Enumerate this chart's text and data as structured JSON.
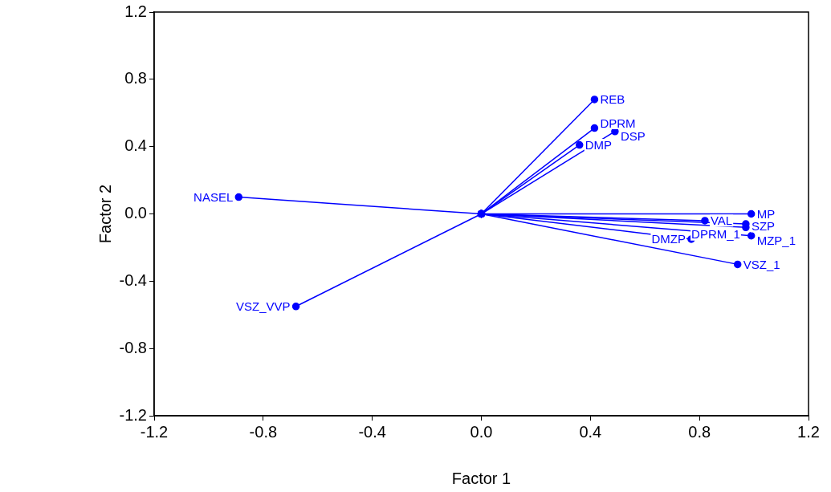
{
  "chart_data": {
    "type": "line",
    "xlabel": "Factor 1",
    "ylabel": "Factor 2",
    "xlim": [
      -1.2,
      1.2
    ],
    "ylim": [
      -1.2,
      1.2
    ],
    "xticks": [
      -1.2,
      -0.8,
      -0.4,
      {
        "value": 0,
        "label": "0.0"
      },
      0.4,
      0.8,
      1.2
    ],
    "yticks": [
      -1.2,
      -0.8,
      -0.4,
      {
        "value": 0,
        "label": "0.0"
      },
      0.4,
      0.8,
      1.2
    ],
    "grid": false,
    "legend": false,
    "marker": "circle",
    "line_style": "solid",
    "series": [
      {
        "name": "REB",
        "color": "#0000ff",
        "x": [
          0,
          0.415
        ],
        "values": [
          0,
          0.68
        ]
      },
      {
        "name": "DPRM",
        "color": "#0000ff",
        "x": [
          0,
          0.415
        ],
        "values": [
          0,
          0.51
        ]
      },
      {
        "name": "DSP",
        "color": "#0000ff",
        "x": [
          0,
          0.49
        ],
        "values": [
          0,
          0.49
        ]
      },
      {
        "name": "DMP",
        "color": "#0000ff",
        "x": [
          0,
          0.36
        ],
        "values": [
          0,
          0.41
        ]
      },
      {
        "name": "NASEL",
        "color": "#0000ff",
        "x": [
          0,
          -0.89
        ],
        "values": [
          0,
          0.1
        ]
      },
      {
        "name": "VSZ_VVP",
        "color": "#0000ff",
        "x": [
          0,
          -0.68
        ],
        "values": [
          0,
          -0.55
        ]
      },
      {
        "name": "MP",
        "color": "#0000ff",
        "x": [
          0,
          0.99
        ],
        "values": [
          0,
          0
        ]
      },
      {
        "name": "VAL",
        "color": "#0000ff",
        "x": [
          0,
          0.82
        ],
        "values": [
          0,
          -0.04
        ]
      },
      {
        "name": "SZP",
        "color": "#0000ff",
        "x": [
          0,
          0.97
        ],
        "values": [
          0,
          -0.06
        ]
      },
      {
        "name": "DPRM_1",
        "color": "#0000ff",
        "x": [
          0,
          0.97
        ],
        "values": [
          0,
          -0.08
        ]
      },
      {
        "name": "MZP_1",
        "color": "#0000ff",
        "x": [
          0,
          0.99
        ],
        "values": [
          0,
          -0.13
        ]
      },
      {
        "name": "DMZP",
        "color": "#0000ff",
        "x": [
          0,
          0.77
        ],
        "values": [
          0,
          -0.15
        ]
      },
      {
        "name": "VSZ_1",
        "color": "#0000ff",
        "x": [
          0,
          0.94
        ],
        "values": [
          0,
          -0.3
        ]
      }
    ]
  }
}
